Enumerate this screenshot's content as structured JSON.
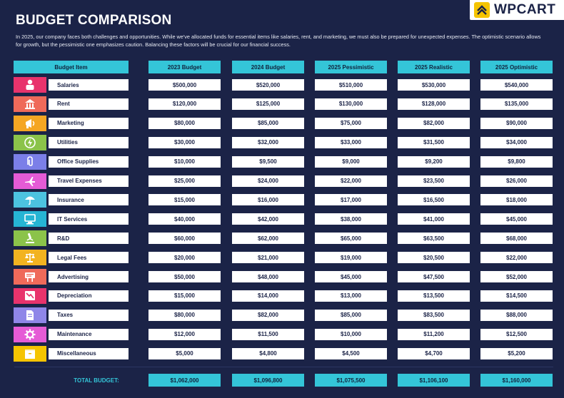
{
  "title": "BUDGET COMPARISON",
  "intro": "In 2025, our company faces both challenges and opportunities. While we've allocated funds for essential items like salaries, rent, and marketing, we must also be prepared for unexpected expenses. The optimistic scenario allows for growth, but the pessimistic one emphasizes caution. Balancing these factors will be crucial for our financial success.",
  "logo": {
    "text": "WPCART",
    "icon": "chevron-up-logo-icon",
    "accent": "#f5c400"
  },
  "colors": {
    "background": "#1b2347",
    "accent": "#34c5d8"
  },
  "columns": [
    "Budget Item",
    "2023 Budget",
    "2024 Budget",
    "2025 Pessimistic",
    "2025 Realistic",
    "2025 Optimistic"
  ],
  "rows": [
    {
      "item": "Salaries",
      "icon": "person-icon",
      "color": "#e8336c",
      "values": [
        "$500,000",
        "$520,000",
        "$510,000",
        "$530,000",
        "$540,000"
      ]
    },
    {
      "item": "Rent",
      "icon": "building-icon",
      "color": "#ef6a5a",
      "values": [
        "$120,000",
        "$125,000",
        "$130,000",
        "$128,000",
        "$135,000"
      ]
    },
    {
      "item": "Marketing",
      "icon": "megaphone-icon",
      "color": "#f5a623",
      "values": [
        "$80,000",
        "$85,000",
        "$75,000",
        "$82,000",
        "$90,000"
      ]
    },
    {
      "item": "Utilities",
      "icon": "lightning-icon",
      "color": "#8bc34a",
      "values": [
        "$30,000",
        "$32,000",
        "$33,000",
        "$31,500",
        "$34,000"
      ]
    },
    {
      "item": "Office Supplies",
      "icon": "paper-clip-icon",
      "color": "#7b7fe8",
      "values": [
        "$10,000",
        "$9,500",
        "$9,000",
        "$9,200",
        "$9,800"
      ]
    },
    {
      "item": "Travel Expenses",
      "icon": "airplane-icon",
      "color": "#e55bd6",
      "values": [
        "$25,000",
        "$24,000",
        "$22,000",
        "$23,500",
        "$26,000"
      ]
    },
    {
      "item": "Insurance",
      "icon": "umbrella-icon",
      "color": "#4cc3e0",
      "values": [
        "$15,000",
        "$16,000",
        "$17,000",
        "$16,500",
        "$18,000"
      ]
    },
    {
      "item": "IT Services",
      "icon": "computer-icon",
      "color": "#26b5d4",
      "values": [
        "$40,000",
        "$42,000",
        "$38,000",
        "$41,000",
        "$45,000"
      ]
    },
    {
      "item": "R&D",
      "icon": "microscope-icon",
      "color": "#8bc34a",
      "values": [
        "$60,000",
        "$62,000",
        "$65,000",
        "$63,500",
        "$68,000"
      ]
    },
    {
      "item": "Legal Fees",
      "icon": "scale-icon",
      "color": "#f2b320",
      "values": [
        "$20,000",
        "$21,000",
        "$19,000",
        "$20,500",
        "$22,000"
      ]
    },
    {
      "item": "Advertising",
      "icon": "billboard-icon",
      "color": "#ef6a5a",
      "values": [
        "$50,000",
        "$48,000",
        "$45,000",
        "$47,500",
        "$52,000"
      ]
    },
    {
      "item": "Depreciation",
      "icon": "chart-down-icon",
      "color": "#e8336c",
      "values": [
        "$15,000",
        "$14,000",
        "$13,000",
        "$13,500",
        "$14,500"
      ]
    },
    {
      "item": "Taxes",
      "icon": "document-icon",
      "color": "#8f86e8",
      "values": [
        "$80,000",
        "$82,000",
        "$85,000",
        "$83,500",
        "$88,000"
      ]
    },
    {
      "item": "Maintenance",
      "icon": "gear-icon",
      "color": "#e55bd6",
      "values": [
        "$12,000",
        "$11,500",
        "$10,000",
        "$11,200",
        "$12,500"
      ]
    },
    {
      "item": "Miscellaneous",
      "icon": "box-icon",
      "color": "#f5c400",
      "values": [
        "$5,000",
        "$4,800",
        "$4,500",
        "$4,700",
        "$5,200"
      ]
    }
  ],
  "total_label": "TOTAL BUDGET:",
  "totals": [
    "$1,062,000",
    "$1,096,800",
    "$1,075,500",
    "$1,106,100",
    "$1,160,000"
  ]
}
